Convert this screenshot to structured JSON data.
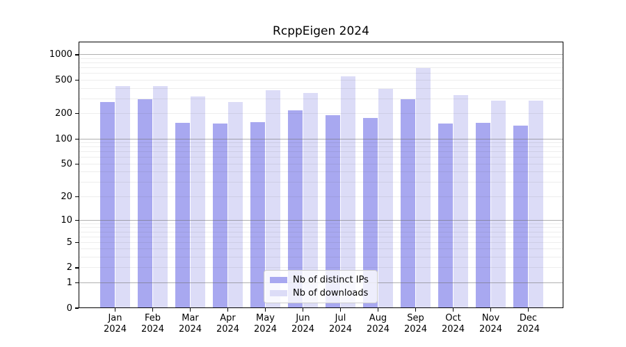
{
  "chart_data": {
    "type": "bar",
    "title": "RcppEigen 2024",
    "months": [
      "Jan",
      "Feb",
      "Mar",
      "Apr",
      "May",
      "Jun",
      "Jul",
      "Aug",
      "Sep",
      "Oct",
      "Nov",
      "Dec"
    ],
    "year": "2024",
    "series": [
      {
        "name": "Nb of distinct IPs",
        "color": "#a8a8f0",
        "values": [
          274,
          295,
          156,
          154,
          159,
          218,
          192,
          178,
          295,
          153,
          157,
          145
        ]
      },
      {
        "name": "Nb of downloads",
        "color": "#dcdcf7",
        "values": [
          424,
          425,
          320,
          276,
          380,
          355,
          556,
          392,
          695,
          330,
          287,
          287
        ]
      }
    ],
    "y_axis": {
      "scale": "log1p",
      "tick_labels": [
        0,
        1,
        2,
        5,
        10,
        20,
        50,
        100,
        200,
        500,
        1000
      ],
      "major_gridlines": [
        1,
        10,
        100,
        1000
      ],
      "minor_gridlines": [
        2,
        3,
        4,
        5,
        6,
        7,
        8,
        9,
        20,
        30,
        40,
        50,
        60,
        70,
        80,
        90,
        200,
        300,
        400,
        500,
        600,
        700,
        800,
        900
      ]
    },
    "legend_position": "bottom-center",
    "grid_over_bars": true
  }
}
